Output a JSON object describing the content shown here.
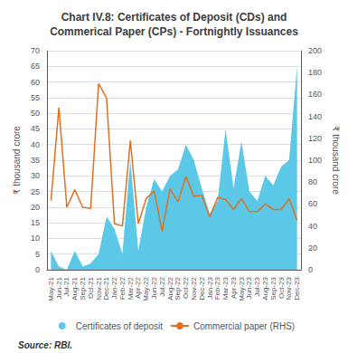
{
  "chart_data": {
    "type": "line",
    "title": "Chart IV.8: Certificates of Deposit (CDs) and\nCommerical Paper (CPs) - Fortnightly Issuances",
    "annotations": [
      "Source: RBI."
    ],
    "ylabel": "₹ thousand crore",
    "y2label": "₹ thousand crore",
    "categories": [
      "May-21",
      "Jun-21",
      "Jul-21",
      "Aug-21",
      "Sep-21",
      "Oct-21",
      "Nov-21",
      "Dec-21",
      "Jan-22",
      "Feb-22",
      "Mar-22",
      "Apr-22",
      "May-22",
      "Jun-22",
      "Jul-22",
      "Aug-22",
      "Sep-22",
      "Oct-22",
      "Nov-22",
      "Dec-22",
      "Jan-23",
      "Feb-23",
      "Mar-23",
      "Apr-23",
      "May-23",
      "Jun-23",
      "Jul-23",
      "Aug-23",
      "Sep-23",
      "Oct-23",
      "Nov-23",
      "Dec-23"
    ],
    "series": [
      {
        "name": "Certificates of deposit",
        "type": "area",
        "color": "#5bc8e8",
        "values": [
          6,
          1,
          0,
          6,
          1,
          2,
          5,
          17,
          13,
          5,
          35,
          6,
          20,
          29,
          25,
          30,
          32,
          40,
          35,
          26,
          18,
          22,
          45,
          26,
          41,
          25,
          22,
          30,
          27,
          33,
          35,
          65
        ]
      },
      {
        "name": "Commercial paper (RHS)",
        "type": "line",
        "axis": "y2",
        "color": "#e07020",
        "values": [
          63,
          148,
          57,
          73,
          57,
          56,
          170,
          157,
          42,
          40,
          118,
          42,
          65,
          72,
          35,
          74,
          62,
          85,
          67,
          68,
          48,
          66,
          64,
          55,
          65,
          53,
          53,
          60,
          55,
          55,
          65,
          45
        ]
      }
    ],
    "ylim": [
      0,
      70
    ],
    "yticks": [
      0,
      5,
      10,
      15,
      20,
      25,
      30,
      35,
      40,
      45,
      50,
      55,
      60,
      65,
      70
    ],
    "y2lim": [
      0,
      200
    ],
    "y2ticks": [
      0,
      20,
      40,
      60,
      80,
      100,
      120,
      140,
      160,
      180,
      200
    ],
    "grid": true,
    "legend": "bottom"
  }
}
